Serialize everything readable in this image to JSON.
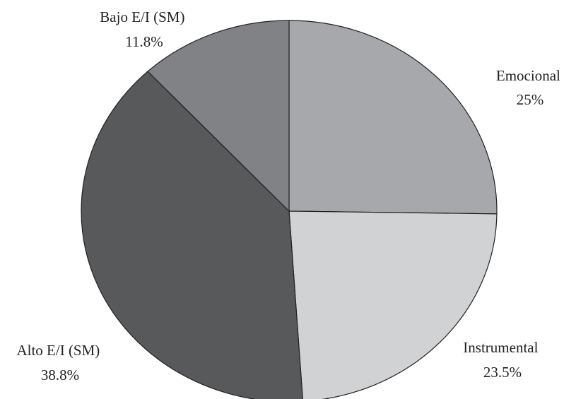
{
  "chart_data": {
    "type": "pie",
    "title": "",
    "start_angle_deg": 0,
    "direction": "clockwise",
    "slices": [
      {
        "name": "Emocional",
        "value": 25.0,
        "value_label": "25%",
        "color": "#a7a8ab"
      },
      {
        "name": "Instrumental",
        "value": 23.5,
        "value_label": "23.5%",
        "color": "#d1d2d4"
      },
      {
        "name": "Alto E/I (SM)",
        "value": 38.8,
        "value_label": "38.8%",
        "color": "#58595b"
      },
      {
        "name": "Bajo E/I (SM)",
        "value": 11.8,
        "value_label": "11.8%",
        "color": "#808285"
      }
    ],
    "stroke_color": "#231f20",
    "legend": "none",
    "grid": false
  }
}
